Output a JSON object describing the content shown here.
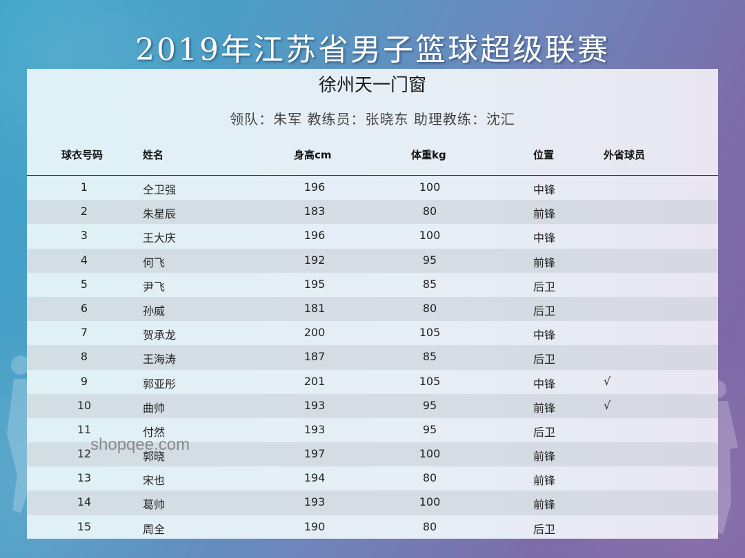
{
  "page": {
    "title": "2019年江苏省男子篮球超级联赛",
    "team": "徐州天一门窗",
    "staff": "领队：朱军 教练员：张晓东 助理教练：沈汇",
    "watermark": "shopqee.com"
  },
  "table": {
    "headers": [
      "球衣号码",
      "姓名",
      "身高cm",
      "体重kg",
      "位置",
      "外省球员"
    ],
    "rows": [
      {
        "number": "1",
        "name": "仝卫强",
        "height": "196",
        "weight": "100",
        "position": "中锋",
        "outside": ""
      },
      {
        "number": "2",
        "name": "朱星辰",
        "height": "183",
        "weight": "80",
        "position": "前锋",
        "outside": ""
      },
      {
        "number": "3",
        "name": "王大庆",
        "height": "196",
        "weight": "100",
        "position": "中锋",
        "outside": ""
      },
      {
        "number": "4",
        "name": "何飞",
        "height": "192",
        "weight": "95",
        "position": "前锋",
        "outside": ""
      },
      {
        "number": "5",
        "name": "尹飞",
        "height": "195",
        "weight": "85",
        "position": "后卫",
        "outside": ""
      },
      {
        "number": "6",
        "name": "孙威",
        "height": "181",
        "weight": "80",
        "position": "后卫",
        "outside": ""
      },
      {
        "number": "7",
        "name": "贺承龙",
        "height": "200",
        "weight": "105",
        "position": "中锋",
        "outside": ""
      },
      {
        "number": "8",
        "name": "王海涛",
        "height": "187",
        "weight": "85",
        "position": "后卫",
        "outside": ""
      },
      {
        "number": "9",
        "name": "郭亚彤",
        "height": "201",
        "weight": "105",
        "position": "中锋",
        "outside": "√"
      },
      {
        "number": "10",
        "name": "曲帅",
        "height": "193",
        "weight": "95",
        "position": "前锋",
        "outside": "√"
      },
      {
        "number": "11",
        "name": "付然",
        "height": "193",
        "weight": "95",
        "position": "后卫",
        "outside": ""
      },
      {
        "number": "12",
        "name": "郭晓",
        "height": "197",
        "weight": "100",
        "position": "前锋",
        "outside": ""
      },
      {
        "number": "13",
        "name": "宋也",
        "height": "194",
        "weight": "80",
        "position": "前锋",
        "outside": ""
      },
      {
        "number": "14",
        "name": "葛帅",
        "height": "193",
        "weight": "100",
        "position": "前锋",
        "outside": ""
      },
      {
        "number": "15",
        "name": "周全",
        "height": "190",
        "weight": "80",
        "position": "后卫",
        "outside": ""
      }
    ]
  }
}
